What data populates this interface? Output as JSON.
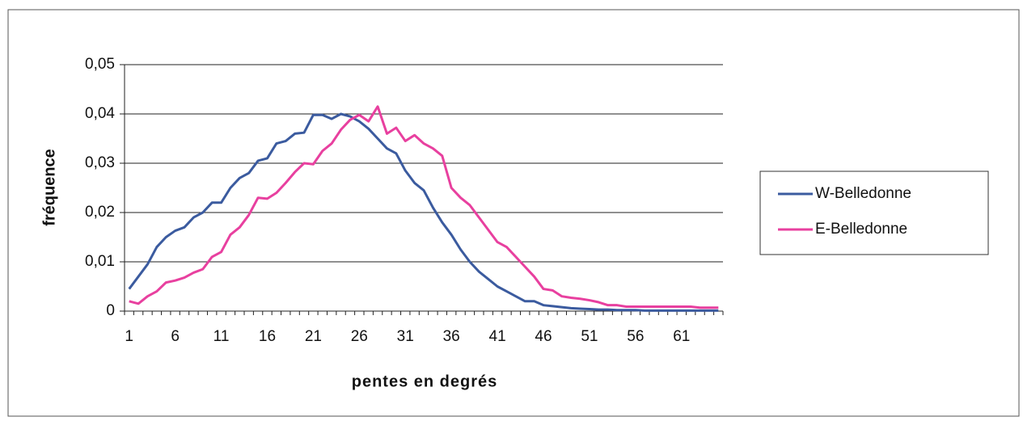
{
  "chart_data": {
    "type": "line",
    "xlabel": "pentes en degrés",
    "ylabel": "fréquence",
    "categories": [
      "1",
      null,
      null,
      null,
      null,
      "6",
      null,
      null,
      null,
      null,
      "11",
      null,
      null,
      null,
      null,
      "16",
      null,
      null,
      null,
      null,
      "21",
      null,
      null,
      null,
      null,
      "26",
      null,
      null,
      null,
      null,
      "31",
      null,
      null,
      null,
      null,
      "36",
      null,
      null,
      null,
      null,
      "41",
      null,
      null,
      null,
      null,
      "46",
      null,
      null,
      null,
      null,
      "51",
      null,
      null,
      null,
      null,
      "56",
      null,
      null,
      null,
      null,
      "61",
      null,
      null,
      null,
      null
    ],
    "series": [
      {
        "name": "W-Belledonne",
        "color": "#3b5b9f",
        "values": [
          0.0045,
          0.007,
          0.0095,
          0.013,
          0.015,
          0.0163,
          0.017,
          0.019,
          0.02,
          0.022,
          0.022,
          0.025,
          0.027,
          0.028,
          0.0305,
          0.031,
          0.034,
          0.0345,
          0.036,
          0.0362,
          0.0398,
          0.0398,
          0.039,
          0.04,
          0.0395,
          0.0385,
          0.037,
          0.035,
          0.033,
          0.032,
          0.0285,
          0.026,
          0.0245,
          0.021,
          0.018,
          0.0155,
          0.0125,
          0.01,
          0.008,
          0.0065,
          0.005,
          0.004,
          0.003,
          0.002,
          0.002,
          0.0012,
          0.001,
          0.0008,
          0.0006,
          0.0005,
          0.0004,
          0.0003,
          0.0003,
          0.0002,
          0.0002,
          0.0002,
          0.0001,
          0.0001,
          0.0001,
          0.0001,
          0.0001,
          0.0001,
          0.0001,
          0.0001,
          0.0001
        ]
      },
      {
        "name": "E-Belledonne",
        "color": "#e8409f",
        "values": [
          0.002,
          0.0015,
          0.003,
          0.004,
          0.0058,
          0.0062,
          0.0068,
          0.0078,
          0.0085,
          0.011,
          0.012,
          0.0155,
          0.017,
          0.0195,
          0.023,
          0.0228,
          0.024,
          0.026,
          0.0282,
          0.03,
          0.0298,
          0.0325,
          0.034,
          0.0368,
          0.0388,
          0.0398,
          0.0385,
          0.0415,
          0.036,
          0.0372,
          0.0345,
          0.0357,
          0.034,
          0.033,
          0.0315,
          0.025,
          0.023,
          0.0215,
          0.019,
          0.0165,
          0.014,
          0.013,
          0.011,
          0.009,
          0.007,
          0.0045,
          0.0042,
          0.003,
          0.0027,
          0.0025,
          0.0022,
          0.0018,
          0.0012,
          0.0012,
          0.0009,
          0.0009,
          0.0009,
          0.0009,
          0.0009,
          0.0009,
          0.0009,
          0.0009,
          0.0007,
          0.0007,
          0.0007
        ]
      }
    ],
    "ylim": [
      0,
      0.05
    ],
    "yticks": [
      0,
      {
        "value": 0.01,
        "label": "0,01"
      },
      {
        "value": 0.02,
        "label": "0,02"
      },
      {
        "value": 0.03,
        "label": "0,03"
      },
      {
        "value": 0.04,
        "label": "0,04"
      },
      {
        "value": 0.05,
        "label": "0,05"
      }
    ],
    "grid": true,
    "legend": "right"
  }
}
